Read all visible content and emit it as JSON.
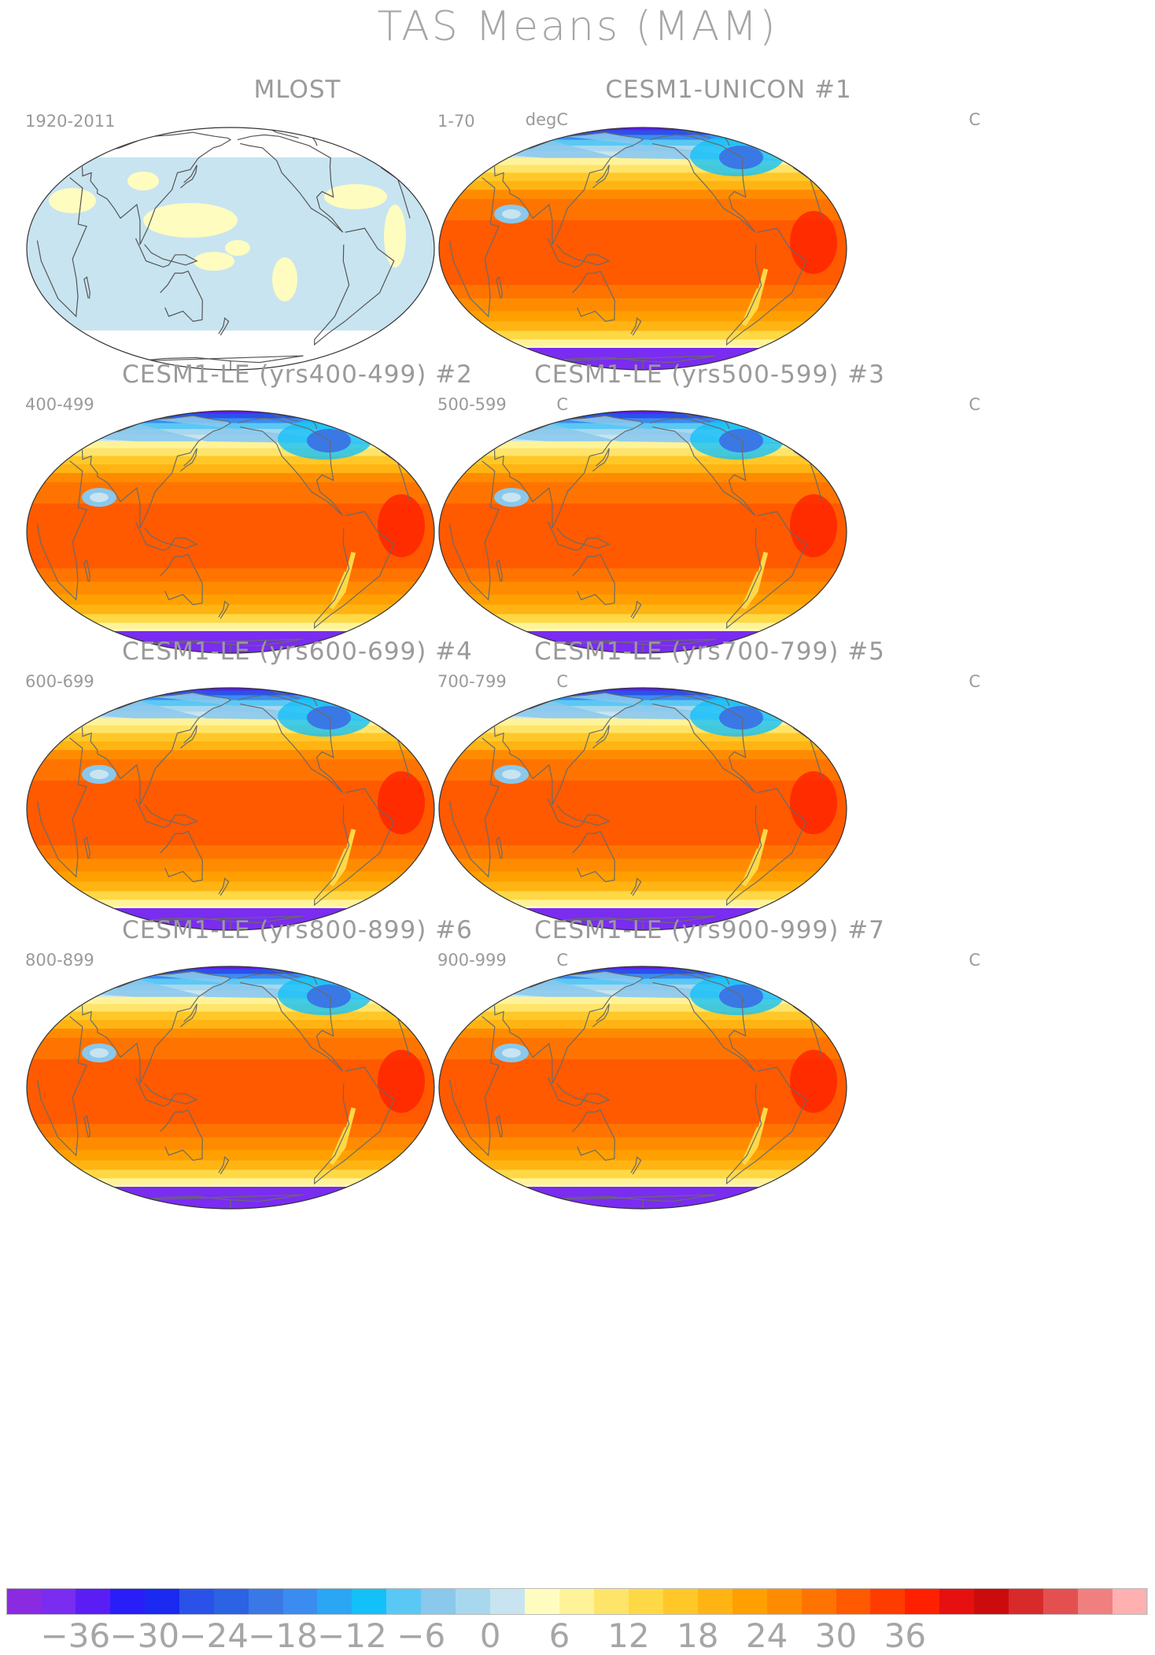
{
  "page": {
    "title": "TAS Means (MAM)"
  },
  "panels": [
    {
      "title": "MLOST",
      "left_label": "1920-2011",
      "right_label": "degC",
      "type": "obs"
    },
    {
      "title": "CESM1-UNICON       #1",
      "left_label": "1-70",
      "right_label": "C",
      "type": "model"
    },
    {
      "title": "CESM1-LE (yrs400-499) #2",
      "left_label": "400-499",
      "right_label": "C",
      "type": "model"
    },
    {
      "title": "CESM1-LE (yrs500-599) #3",
      "left_label": "500-599",
      "right_label": "C",
      "type": "model"
    },
    {
      "title": "CESM1-LE (yrs600-699) #4",
      "left_label": "600-699",
      "right_label": "C",
      "type": "model"
    },
    {
      "title": "CESM1-LE (yrs700-799) #5",
      "left_label": "700-799",
      "right_label": "C",
      "type": "model"
    },
    {
      "title": "CESM1-LE (yrs800-899) #6",
      "left_label": "800-899",
      "right_label": "C",
      "type": "model"
    },
    {
      "title": "CESM1-LE (yrs900-999) #7",
      "left_label": "900-999",
      "right_label": "C",
      "type": "model"
    }
  ],
  "colorbar": {
    "labels": [
      "−36",
      "−30",
      "−24",
      "−18",
      "−12",
      "−6",
      "0",
      "6",
      "12",
      "18",
      "24",
      "30",
      "36"
    ],
    "colors": [
      "#8a2be2",
      "#7a2cf0",
      "#5a1ef5",
      "#2a1ef8",
      "#1a2af0",
      "#2a52e8",
      "#2c62e4",
      "#3a78e6",
      "#3a8cf0",
      "#2aa6f4",
      "#14c0f8",
      "#5ac8f4",
      "#8ac8ec",
      "#a8d8ee",
      "#c8e4f0",
      "#fffcc0",
      "#fff39a",
      "#ffe46a",
      "#ffd845",
      "#ffc828",
      "#ffb414",
      "#ffa000",
      "#ff8c00",
      "#ff7400",
      "#ff5a00",
      "#ff3c00",
      "#ff2000",
      "#e61010",
      "#cc0c0c",
      "#d82a2a",
      "#e45050",
      "#f08080",
      "#ffb0b0"
    ]
  }
}
